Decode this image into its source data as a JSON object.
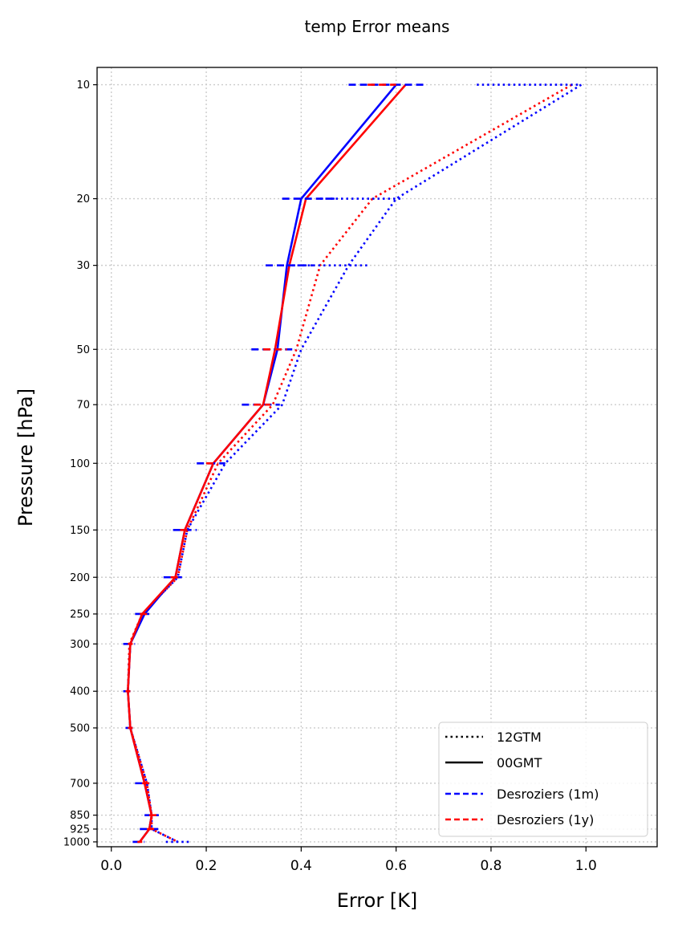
{
  "chart_data": {
    "type": "line",
    "title": "temp Error means",
    "xlabel": "Error [K]",
    "ylabel": "Pressure [hPa]",
    "xlim": [
      -0.03,
      1.15
    ],
    "ylim": [
      1030,
      9
    ],
    "y_scale": "log",
    "x_ticks": [
      0.0,
      0.2,
      0.4,
      0.6,
      0.8,
      1.0
    ],
    "x_tick_labels": [
      "0.0",
      "0.2",
      "0.4",
      "0.6",
      "0.8",
      "1.0"
    ],
    "pressure_levels": [
      10,
      20,
      30,
      50,
      70,
      100,
      150,
      200,
      250,
      300,
      400,
      500,
      700,
      850,
      925,
      1000
    ],
    "grid": true,
    "legend": {
      "position": "lower-right",
      "entries": [
        {
          "label": "12GTM",
          "style": "dotted",
          "color": "#000000"
        },
        {
          "label": "00GMT",
          "style": "solid",
          "color": "#000000"
        },
        {
          "label": "Desroziers (1m)",
          "style": "dashed",
          "color": "#0000ff"
        },
        {
          "label": "Desroziers (1y)",
          "style": "dashed",
          "color": "#ff0000"
        }
      ]
    },
    "series": [
      {
        "name": "Desroziers (1m) 12GTM",
        "color": "#0000ff",
        "style": "dotted",
        "values": [
          0.99,
          0.6,
          0.5,
          0.4,
          0.36,
          0.24,
          0.16,
          0.14,
          0.065,
          0.04,
          0.035,
          0.04,
          0.075,
          0.085,
          0.085,
          0.14
        ]
      },
      {
        "name": "Desroziers (1y) 12GTM",
        "color": "#ff0000",
        "style": "dotted",
        "values": [
          0.97,
          0.55,
          0.44,
          0.39,
          0.34,
          0.225,
          0.16,
          0.14,
          0.065,
          0.038,
          0.035,
          0.04,
          0.075,
          0.085,
          0.085,
          0.14
        ]
      },
      {
        "name": "Desroziers (1m) 00GMT",
        "color": "#0000ff",
        "style": "solid",
        "values": [
          0.6,
          0.4,
          0.37,
          0.35,
          0.32,
          0.215,
          0.155,
          0.135,
          0.07,
          0.04,
          0.035,
          0.04,
          0.07,
          0.085,
          0.08,
          0.06
        ]
      },
      {
        "name": "Desroziers (1y) 00GMT",
        "color": "#ff0000",
        "style": "solid",
        "values": [
          0.62,
          0.41,
          0.375,
          0.345,
          0.32,
          0.215,
          0.155,
          0.135,
          0.065,
          0.04,
          0.035,
          0.04,
          0.07,
          0.085,
          0.08,
          0.06
        ]
      }
    ],
    "error_bars": [
      {
        "color": "#0000ff",
        "p": 10,
        "xmin": 0.5,
        "xmax": 0.665
      },
      {
        "color": "#0000ff",
        "p": 20,
        "xmin": 0.36,
        "xmax": 0.47
      },
      {
        "color": "#0000ff",
        "p": 30,
        "xmin": 0.325,
        "xmax": 0.425
      },
      {
        "color": "#0000ff",
        "p": 50,
        "xmin": 0.295,
        "xmax": 0.39
      },
      {
        "color": "#0000ff",
        "p": 70,
        "xmin": 0.275,
        "xmax": 0.355
      },
      {
        "color": "#0000ff",
        "p": 100,
        "xmin": 0.18,
        "xmax": 0.24
      },
      {
        "color": "#0000ff",
        "p": 150,
        "xmin": 0.13,
        "xmax": 0.18
      },
      {
        "color": "#0000ff",
        "p": 200,
        "xmin": 0.11,
        "xmax": 0.155
      },
      {
        "color": "#0000ff",
        "p": 250,
        "xmin": 0.05,
        "xmax": 0.08
      },
      {
        "color": "#0000ff",
        "p": 300,
        "xmin": 0.025,
        "xmax": 0.05
      },
      {
        "color": "#0000ff",
        "p": 400,
        "xmin": 0.025,
        "xmax": 0.045
      },
      {
        "color": "#0000ff",
        "p": 500,
        "xmin": 0.03,
        "xmax": 0.05
      },
      {
        "color": "#0000ff",
        "p": 700,
        "xmin": 0.05,
        "xmax": 0.08
      },
      {
        "color": "#0000ff",
        "p": 850,
        "xmin": 0.07,
        "xmax": 0.1
      },
      {
        "color": "#0000ff",
        "p": 925,
        "xmin": 0.06,
        "xmax": 0.1
      },
      {
        "color": "#0000ff",
        "p": 1000,
        "xmin": 0.045,
        "xmax": 0.07
      },
      {
        "color": "#0000ff",
        "p": 20,
        "xmin": 0.44,
        "xmax": 0.61,
        "style": "dotted"
      },
      {
        "color": "#0000ff",
        "p": 30,
        "xmin": 0.37,
        "xmax": 0.545,
        "style": "dotted"
      },
      {
        "color": "#0000ff",
        "p": 10,
        "xmin": 0.77,
        "xmax": 0.99,
        "style": "dotted"
      },
      {
        "color": "#0000ff",
        "p": 1000,
        "xmin": 0.115,
        "xmax": 0.165,
        "style": "dotted"
      },
      {
        "color": "#ff0000",
        "p": 10,
        "xmin": 0.54,
        "xmax": 0.6
      },
      {
        "color": "#ff0000",
        "p": 50,
        "xmin": 0.32,
        "xmax": 0.37
      },
      {
        "color": "#ff0000",
        "p": 70,
        "xmin": 0.3,
        "xmax": 0.335
      },
      {
        "color": "#ff0000",
        "p": 100,
        "xmin": 0.2,
        "xmax": 0.225
      },
      {
        "color": "#ff0000",
        "p": 150,
        "xmin": 0.145,
        "xmax": 0.165
      },
      {
        "color": "#ff0000",
        "p": 200,
        "xmin": 0.125,
        "xmax": 0.14
      },
      {
        "color": "#ff0000",
        "p": 250,
        "xmin": 0.06,
        "xmax": 0.075
      },
      {
        "color": "#ff0000",
        "p": 300,
        "xmin": 0.035,
        "xmax": 0.045
      },
      {
        "color": "#ff0000",
        "p": 400,
        "xmin": 0.03,
        "xmax": 0.04
      },
      {
        "color": "#ff0000",
        "p": 500,
        "xmin": 0.035,
        "xmax": 0.045
      },
      {
        "color": "#ff0000",
        "p": 700,
        "xmin": 0.065,
        "xmax": 0.08
      },
      {
        "color": "#ff0000",
        "p": 850,
        "xmin": 0.08,
        "xmax": 0.095
      },
      {
        "color": "#ff0000",
        "p": 925,
        "xmin": 0.075,
        "xmax": 0.09
      },
      {
        "color": "#ff0000",
        "p": 1000,
        "xmin": 0.055,
        "xmax": 0.065
      }
    ]
  }
}
